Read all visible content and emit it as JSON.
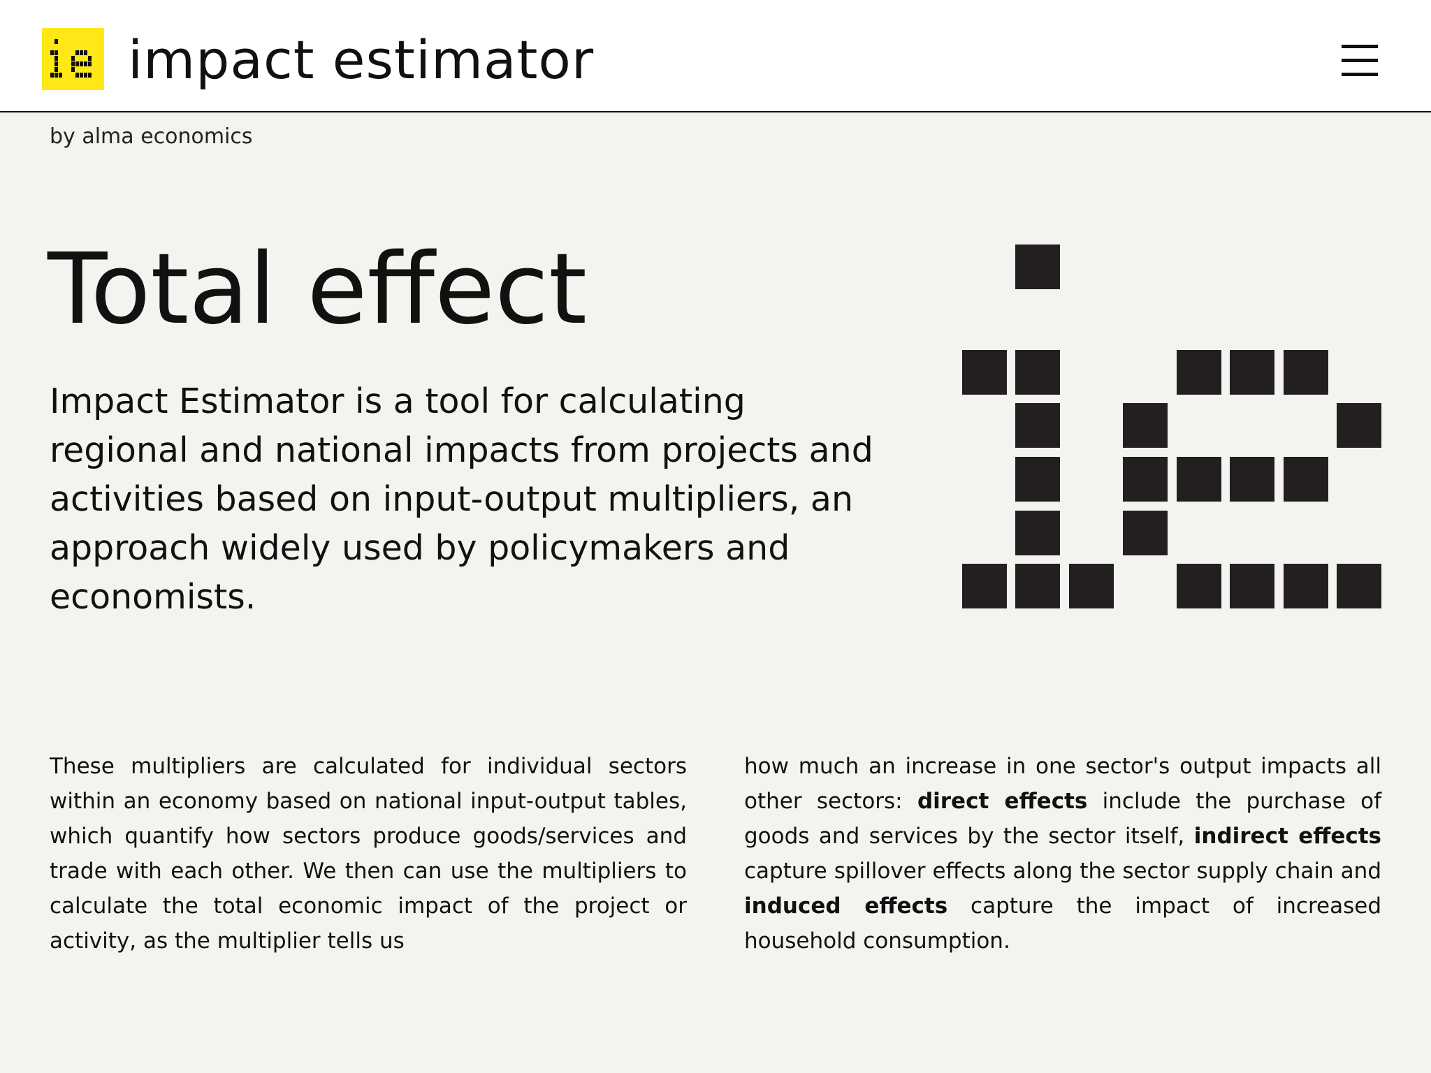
{
  "header": {
    "logo_icon": "ie-pixel-logo-icon",
    "logo_color": "#ffe816",
    "title": "impact estimator",
    "menu_icon": "hamburger-menu-icon"
  },
  "byline": "by alma economics",
  "hero": {
    "title": "Total effect",
    "intro": "Impact Estimator is a tool for calculating regional and national impacts from projects and activities based on input-output multipliers, an approach widely used by policymakers and economists.",
    "graphic_icon": "ie-pixel-mark-icon"
  },
  "body": {
    "left": "These multipliers are calculated for individual sectors within an economy based on national input-output tables, which quantify how sectors produce goods/services and trade with each other. We then can use the multipliers to calculate the total economic impact of the project or activity, as the multiplier tells us",
    "right_1": "how much an increase in one sector's output impacts all other sectors: ",
    "direct": "direct effects",
    "right_2": " include the purchase of goods and services by the sector itself, ",
    "indirect": "indirect effects",
    "right_3": " capture spillover effects along the sector supply chain and ",
    "induced": "induced effects",
    "right_4": " capture the impact of increased household consumption."
  }
}
